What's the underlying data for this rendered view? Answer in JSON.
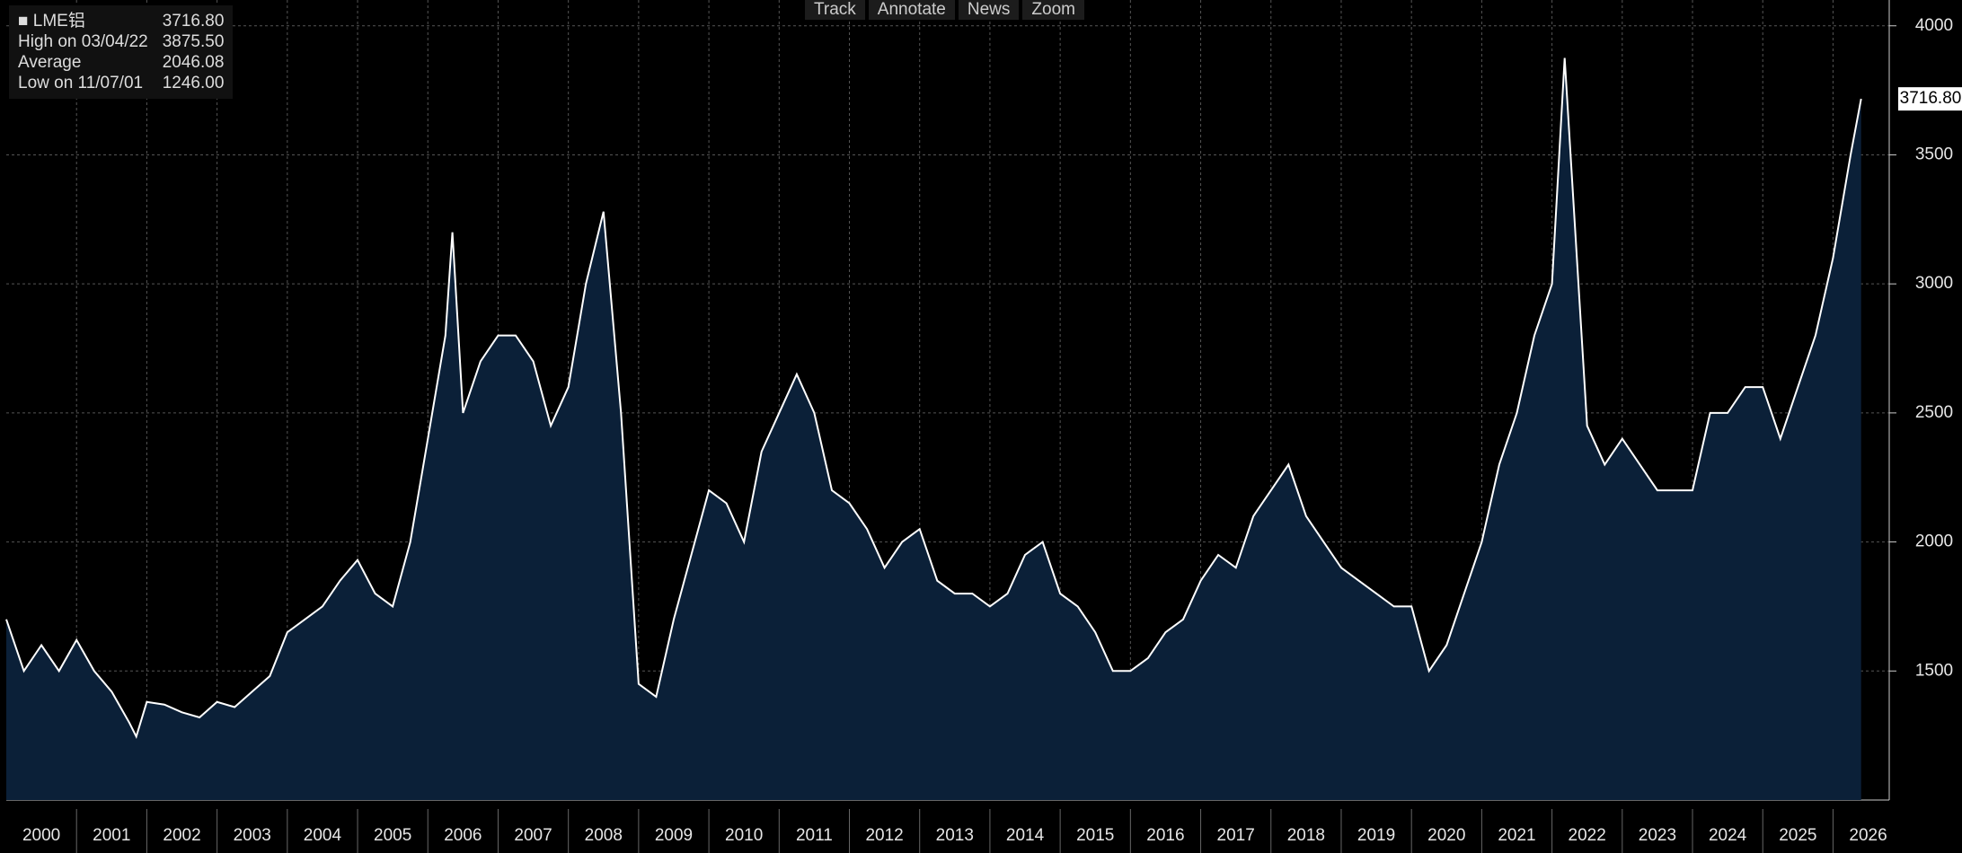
{
  "toolbar": [
    "Track",
    "Annotate",
    "News",
    "Zoom"
  ],
  "chart_data": {
    "type": "area",
    "legend_value": "3716.80",
    "stats": [
      {
        "label": "High on 03/04/22",
        "value": "3875.50"
      },
      {
        "label": "Average",
        "value": "2046.08"
      },
      {
        "label": "Low on 11/07/01",
        "value": "1246.00"
      }
    ],
    "series": [
      {
        "name": "LME铝",
        "color": "#ffffff",
        "fill": "#0b2038",
        "x": [
          2000,
          2000.25,
          2000.5,
          2000.75,
          2001,
          2001.25,
          2001.5,
          2001.75,
          2001.85,
          2002,
          2002.25,
          2002.5,
          2002.75,
          2003,
          2003.25,
          2003.5,
          2003.75,
          2004,
          2004.25,
          2004.5,
          2004.75,
          2005,
          2005.25,
          2005.5,
          2005.75,
          2006,
          2006.25,
          2006.35,
          2006.5,
          2006.75,
          2007,
          2007.25,
          2007.5,
          2007.75,
          2008,
          2008.25,
          2008.5,
          2008.75,
          2009,
          2009.25,
          2009.5,
          2009.75,
          2010,
          2010.25,
          2010.5,
          2010.75,
          2011,
          2011.25,
          2011.5,
          2011.75,
          2012,
          2012.25,
          2012.5,
          2012.75,
          2013,
          2013.25,
          2013.5,
          2013.75,
          2014,
          2014.25,
          2014.5,
          2014.75,
          2015,
          2015.25,
          2015.5,
          2015.75,
          2016,
          2016.25,
          2016.5,
          2016.75,
          2017,
          2017.25,
          2017.5,
          2017.75,
          2018,
          2018.25,
          2018.5,
          2018.75,
          2019,
          2019.25,
          2019.5,
          2019.75,
          2020,
          2020.25,
          2020.5,
          2020.75,
          2021,
          2021.25,
          2021.5,
          2021.75,
          2022,
          2022.18,
          2022.5,
          2022.75,
          2023,
          2023.25,
          2023.5,
          2023.75,
          2024,
          2024.25,
          2024.5,
          2024.75,
          2025,
          2025.25,
          2025.5,
          2025.75,
          2026,
          2026.25,
          2026.4
        ],
        "values": [
          1700,
          1500,
          1600,
          1500,
          1620,
          1500,
          1420,
          1300,
          1246,
          1380,
          1370,
          1340,
          1320,
          1380,
          1360,
          1420,
          1480,
          1650,
          1700,
          1750,
          1850,
          1930,
          1800,
          1750,
          2000,
          2400,
          2800,
          3200,
          2500,
          2700,
          2800,
          2800,
          2700,
          2450,
          2600,
          3000,
          3280,
          2500,
          1450,
          1400,
          1700,
          1950,
          2200,
          2150,
          2000,
          2350,
          2500,
          2650,
          2500,
          2200,
          2150,
          2050,
          1900,
          2000,
          2050,
          1850,
          1800,
          1800,
          1750,
          1800,
          1950,
          2000,
          1800,
          1750,
          1650,
          1500,
          1500,
          1550,
          1650,
          1700,
          1850,
          1950,
          1900,
          2100,
          2200,
          2300,
          2100,
          2000,
          1900,
          1850,
          1800,
          1750,
          1750,
          1500,
          1600,
          1800,
          2000,
          2300,
          2500,
          2800,
          3000,
          3875.5,
          2450,
          2300,
          2400,
          2300,
          2200,
          2200,
          2200,
          2500,
          2500,
          2600,
          2600,
          2400,
          2600,
          2800,
          3100,
          3500,
          3716.8
        ]
      }
    ],
    "xlim": [
      2000,
      2026.8
    ],
    "xticks": [
      2000,
      2001,
      2002,
      2003,
      2004,
      2005,
      2006,
      2007,
      2008,
      2009,
      2010,
      2011,
      2012,
      2013,
      2014,
      2015,
      2016,
      2017,
      2018,
      2019,
      2020,
      2021,
      2022,
      2023,
      2024,
      2025,
      2026
    ],
    "ylim": [
      1000,
      4100
    ],
    "yticks": [
      1500,
      2000,
      2500,
      3000,
      3500,
      4000
    ],
    "grid": true
  }
}
